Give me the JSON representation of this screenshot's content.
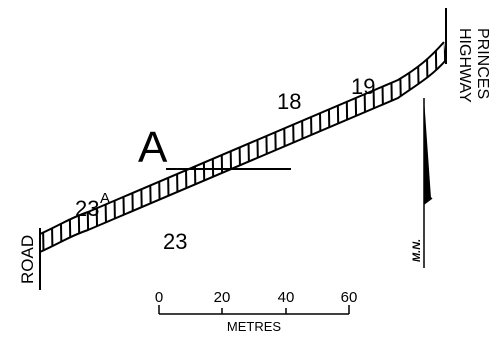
{
  "map": {
    "section_letter": "A",
    "lots": {
      "lot_18": "18",
      "lot_19": "19",
      "lot_23": "23",
      "lot_23a_number": "23",
      "lot_23a_suffix": "A"
    },
    "roads": {
      "left": "ROAD",
      "right_line1": "PRINCES",
      "right_line2": "HIGHWAY"
    },
    "north_label": "M.N.",
    "scale": {
      "unit_label": "METRES",
      "ticks": [
        "0",
        "20",
        "40",
        "60"
      ]
    }
  }
}
